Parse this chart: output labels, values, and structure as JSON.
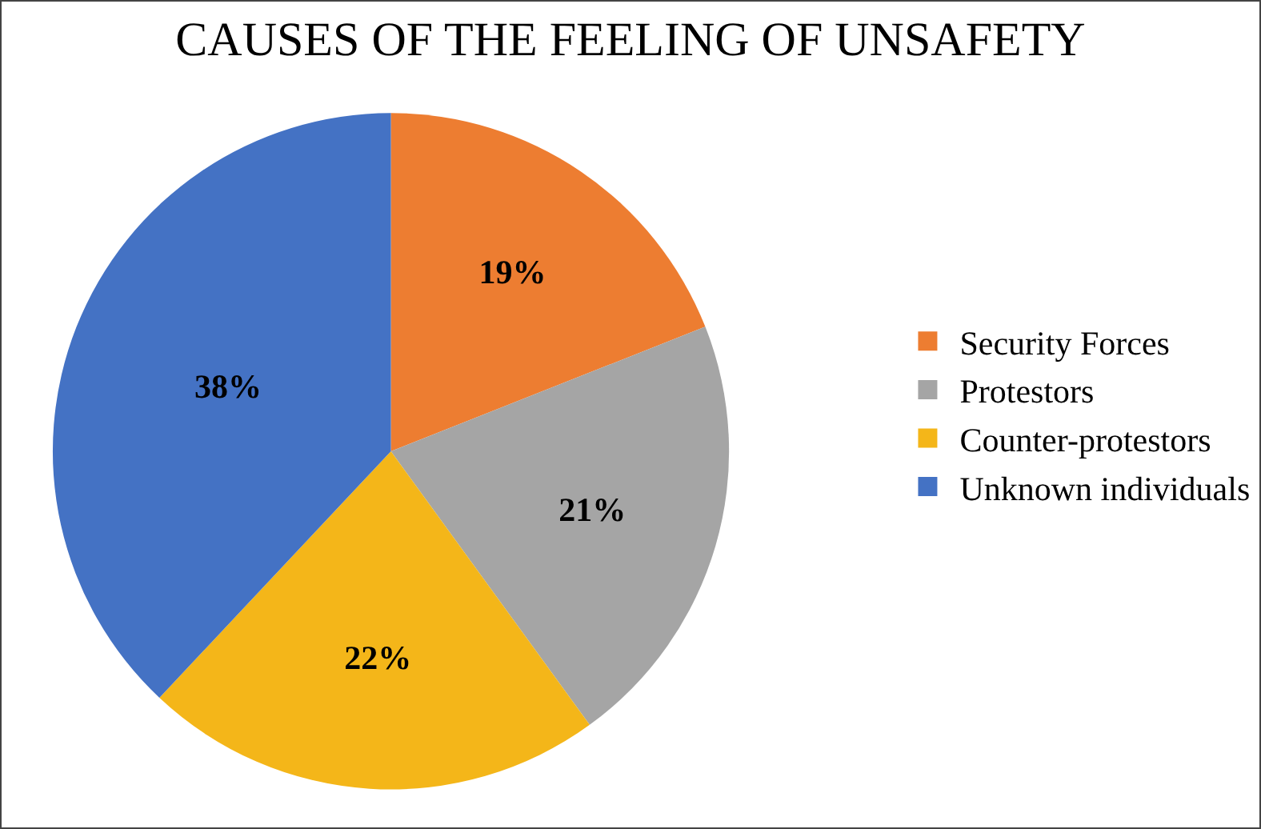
{
  "chart_data": {
    "type": "pie",
    "title": "CAUSES OF THE FEELING OF UNSAFETY",
    "categories": [
      "Security Forces",
      "Protestors",
      "Counter-protestors",
      "Unknown individuals"
    ],
    "values": [
      19,
      21,
      22,
      38
    ],
    "colors": [
      "#ed7d31",
      "#a5a5a5",
      "#f4b619",
      "#4472c4"
    ],
    "value_labels": [
      "19%",
      "21%",
      "22%",
      "38%"
    ],
    "legend": "right"
  }
}
